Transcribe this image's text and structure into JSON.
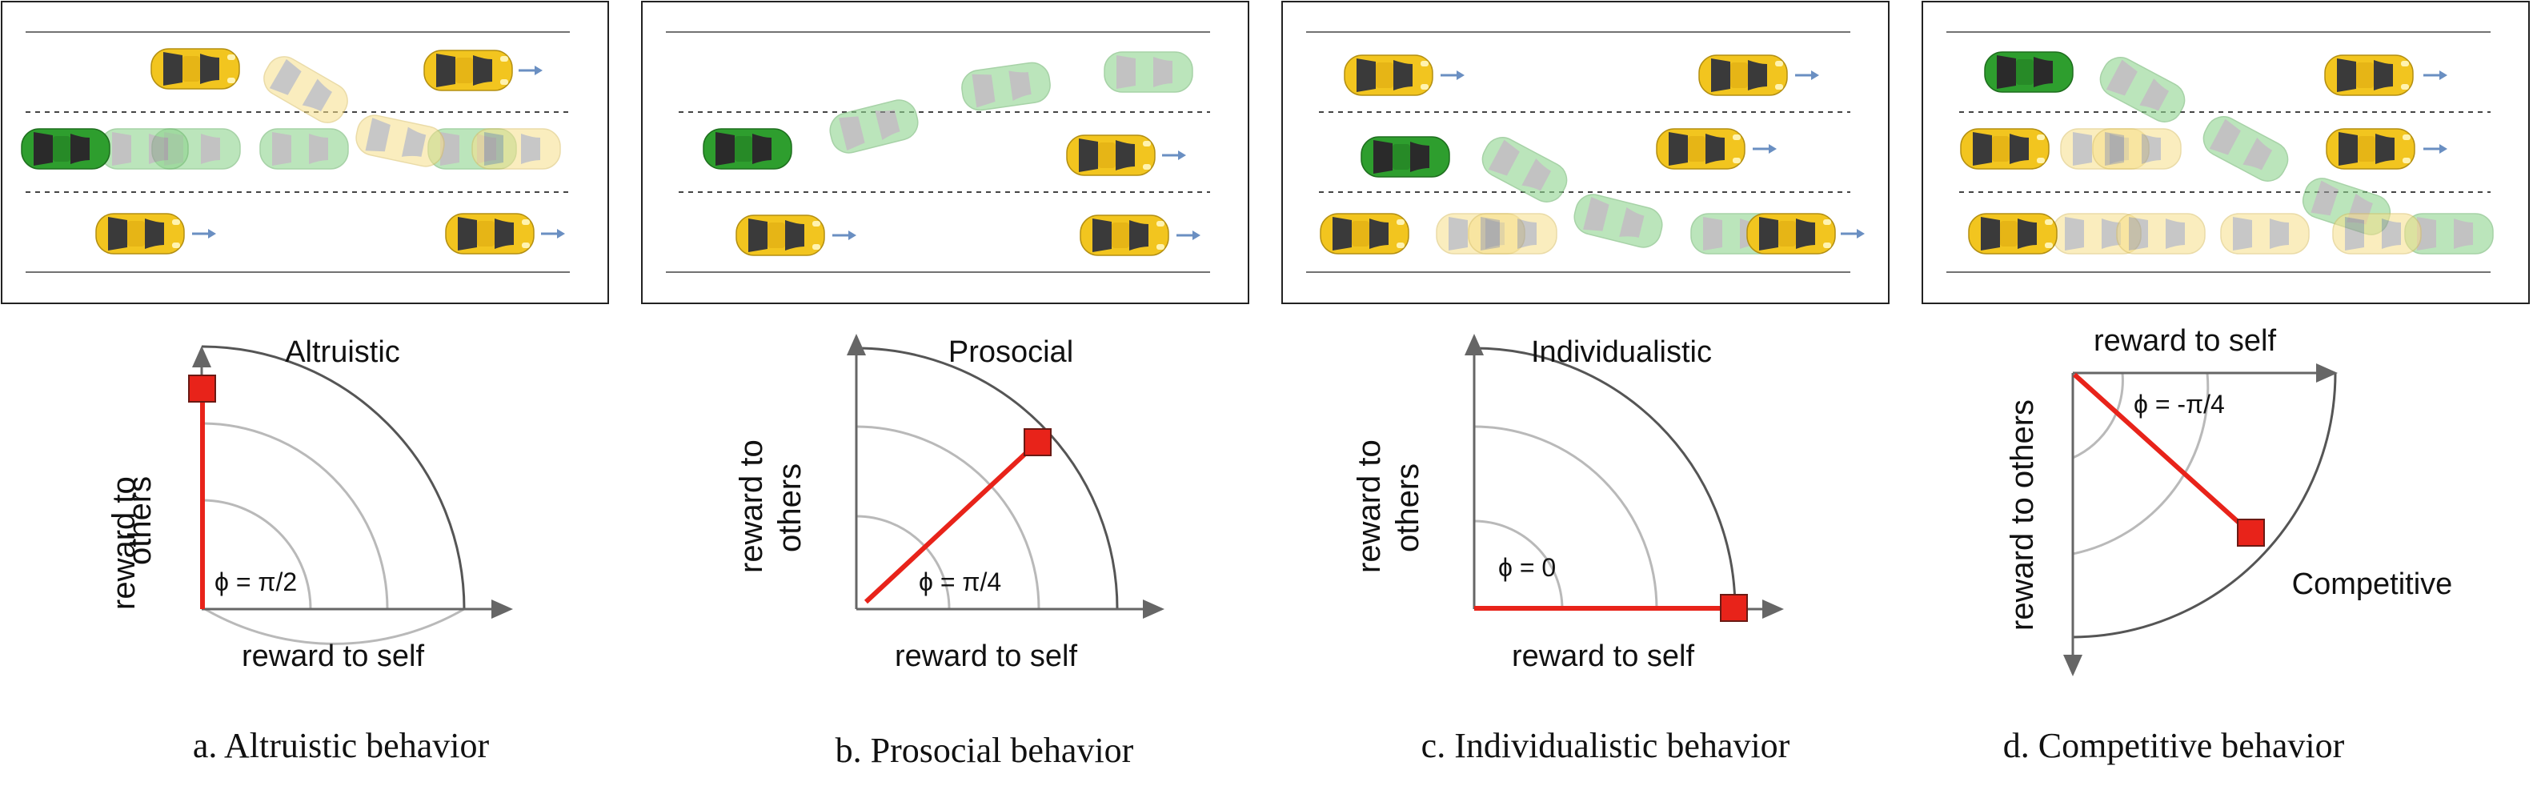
{
  "colors": {
    "yellow_car": "#f2c51f",
    "yellow_car_ghost": "#f7e08a",
    "green_car": "#2e9e2e",
    "green_car_ghost": "#8fd48f",
    "window": "#3a3a3a",
    "window_ghost": "#9a9a9a",
    "arrow": "#6a8fc2",
    "lane_line": "#444444",
    "red_line": "#e8231a",
    "red_marker": "#e8231a",
    "outer_arc": "#555555",
    "inner_arc": "#b9b9b9",
    "axis": "#666666"
  },
  "panels": [
    {
      "plot_title": "Altruistic",
      "ylabel_line1": "reward to",
      "ylabel_line2": "others",
      "xlabel": "reward to self",
      "phi": "ϕ = π/2",
      "caption": "a. Altruistic behavior"
    },
    {
      "plot_title": "Prosocial",
      "ylabel_line1": "reward to",
      "ylabel_line2": "others",
      "xlabel": "reward to self",
      "phi": "ϕ = π/4",
      "caption": "b. Prosocial behavior"
    },
    {
      "plot_title": "Individualistic",
      "ylabel_line1": "reward to",
      "ylabel_line2": "others",
      "xlabel": "reward to self",
      "phi": "ϕ = 0",
      "caption": "c. Individualistic  behavior"
    },
    {
      "xlabel": "reward to self",
      "ylabel": "reward to others",
      "phi": "ϕ = -π/4",
      "label": "Competitive",
      "caption": "d. Competitive behavior"
    }
  ]
}
